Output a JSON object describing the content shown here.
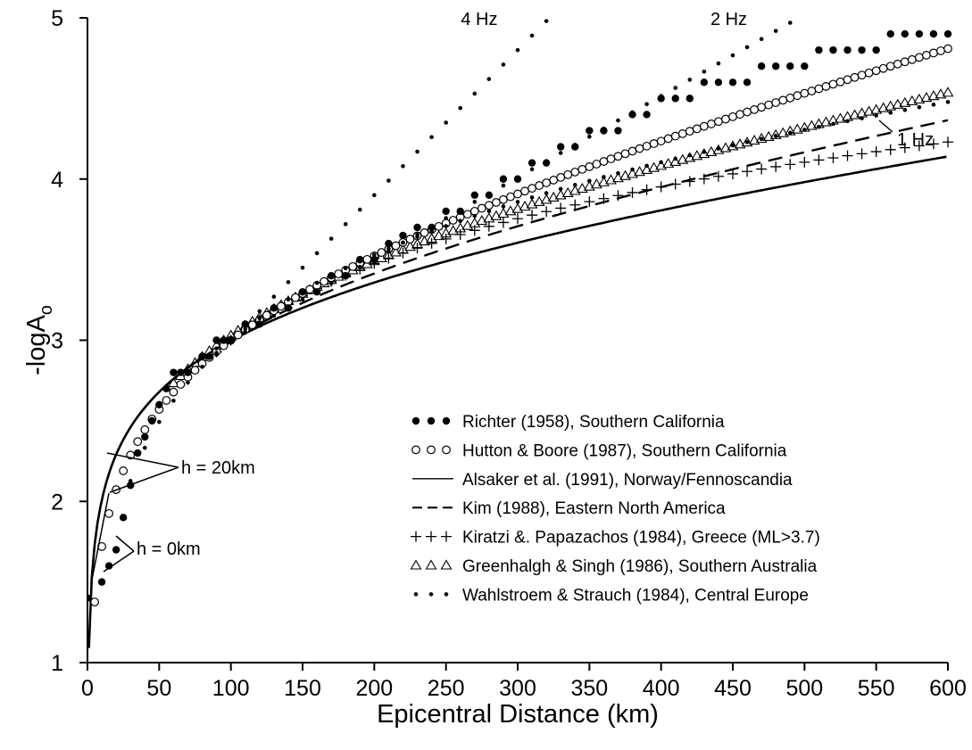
{
  "chart_data": {
    "type": "scatter",
    "xlabel": "Epicentral Distance (km)",
    "ylabel": "-logA",
    "ylabel_subscript": "o",
    "xlim": [
      0,
      600
    ],
    "ylim": [
      1,
      5
    ],
    "xticks": [
      0,
      50,
      100,
      150,
      200,
      250,
      300,
      350,
      400,
      450,
      500,
      550,
      600
    ],
    "yticks": [
      1,
      2,
      3,
      4,
      5
    ],
    "grid": false,
    "legend_position": "lower-right",
    "annotations": [
      {
        "text": "4 Hz"
      },
      {
        "text": "2 Hz"
      },
      {
        "text": "1 Hz"
      },
      {
        "text": "h = 20km"
      },
      {
        "text": "h = 0km"
      }
    ],
    "series": [
      {
        "name": "Richter (1958), Southern California",
        "marker": "filled-circle-large",
        "legend_symbol": "● ● ●",
        "points": [
          [
            0,
            1.4
          ],
          [
            10,
            1.5
          ],
          [
            15,
            1.6
          ],
          [
            20,
            1.7
          ],
          [
            25,
            1.9
          ],
          [
            30,
            2.1
          ],
          [
            35,
            2.3
          ],
          [
            40,
            2.4
          ],
          [
            45,
            2.5
          ],
          [
            50,
            2.6
          ],
          [
            55,
            2.7
          ],
          [
            60,
            2.8
          ],
          [
            65,
            2.8
          ],
          [
            70,
            2.8
          ],
          [
            80,
            2.9
          ],
          [
            85,
            2.9
          ],
          [
            90,
            3.0
          ],
          [
            95,
            3.0
          ],
          [
            100,
            3.0
          ],
          [
            110,
            3.1
          ],
          [
            120,
            3.1
          ],
          [
            130,
            3.2
          ],
          [
            140,
            3.2
          ],
          [
            150,
            3.3
          ],
          [
            160,
            3.3
          ],
          [
            170,
            3.4
          ],
          [
            180,
            3.4
          ],
          [
            190,
            3.5
          ],
          [
            200,
            3.5
          ],
          [
            210,
            3.6
          ],
          [
            220,
            3.65
          ],
          [
            230,
            3.7
          ],
          [
            240,
            3.7
          ],
          [
            250,
            3.8
          ],
          [
            260,
            3.8
          ],
          [
            270,
            3.9
          ],
          [
            280,
            3.9
          ],
          [
            290,
            4.0
          ],
          [
            300,
            4.0
          ],
          [
            310,
            4.1
          ],
          [
            320,
            4.1
          ],
          [
            330,
            4.2
          ],
          [
            340,
            4.2
          ],
          [
            350,
            4.3
          ],
          [
            360,
            4.3
          ],
          [
            370,
            4.3
          ],
          [
            380,
            4.4
          ],
          [
            390,
            4.4
          ],
          [
            400,
            4.5
          ],
          [
            410,
            4.5
          ],
          [
            420,
            4.5
          ],
          [
            430,
            4.6
          ],
          [
            440,
            4.6
          ],
          [
            450,
            4.6
          ],
          [
            460,
            4.6
          ],
          [
            470,
            4.7
          ],
          [
            480,
            4.7
          ],
          [
            490,
            4.7
          ],
          [
            500,
            4.7
          ],
          [
            510,
            4.8
          ],
          [
            520,
            4.8
          ],
          [
            530,
            4.8
          ],
          [
            540,
            4.8
          ],
          [
            550,
            4.8
          ],
          [
            560,
            4.9
          ],
          [
            570,
            4.9
          ],
          [
            580,
            4.9
          ],
          [
            590,
            4.9
          ],
          [
            600,
            4.9
          ]
        ]
      },
      {
        "name": "Hutton & Boore (1987), Southern California",
        "marker": "open-circle",
        "legend_symbol": "○ ○ ○",
        "formula": "1.11*log10(r/100) + 0.00189*(r-100) + 3.0",
        "xrange": [
          5,
          600
        ],
        "step": 5
      },
      {
        "name": "Alsaker et al. (1991), Norway/Fennoscandia",
        "marker": "solid-line",
        "legend_symbol": "line",
        "formula": "0.91*log10(r/60) + 0.00087*(r-60) + 2.76",
        "xrange": [
          0,
          600
        ]
      },
      {
        "name": "Kim (1988), Eastern North America",
        "marker": "dashed-line",
        "legend_symbol": "dashed",
        "formula": "0.97*log10(r/100) + 0.00122*(r-100) + 3.0",
        "xrange": [
          120,
          600
        ]
      },
      {
        "name": "Kiratzi &. Papazachos (1984), Greece (ML>3.7)",
        "marker": "plus",
        "legend_symbol": "+ + +",
        "formula": "1.58*log10(r/100) + 3.0",
        "xrange": [
          90,
          600
        ],
        "step": 10
      },
      {
        "name": "Greenhalgh & Singh (1986), Southern Australia",
        "marker": "open-triangle",
        "legend_symbol": "△△△",
        "formula": "1.10*log10(r/100) + 0.0013*(r-100) + 3.03",
        "xrange": [
          60,
          600
        ],
        "step": 5
      },
      {
        "name": "Wahlstroem & Strauch (1984), Central Europe",
        "marker": "small-dot",
        "legend_symbol": "• • •",
        "curves": [
          {
            "label": "4 Hz",
            "formula": "3.0 + (r-100)*0.009",
            "xrange": [
              90,
              320
            ],
            "step": 10
          },
          {
            "label": "2 Hz",
            "formula": "3.0 + (r-100)*0.00505",
            "xrange": [
              90,
              490
            ],
            "step": 10
          },
          {
            "label": "1 Hz",
            "formula": "3.0 + 1.61*log10(r/100) + 0.00045*(r-100)",
            "xrange": [
              30,
              600
            ],
            "step": 10
          }
        ]
      }
    ]
  }
}
